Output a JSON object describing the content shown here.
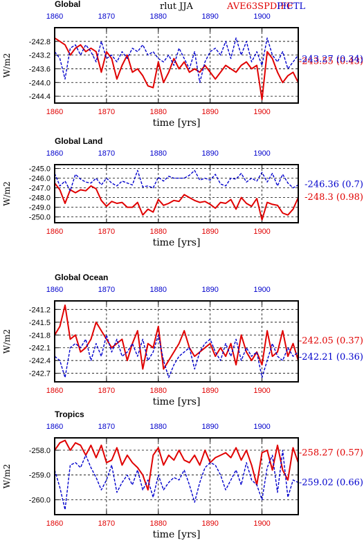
{
  "header": {
    "variable": "rlut JJA",
    "exp_label": "AVE63SPDIFF",
    "ctl_label": "PICTL",
    "exp_color": "#e00000",
    "ctl_color": "#0000cc"
  },
  "chart_data": [
    {
      "type": "line",
      "title": "Global",
      "ylabel": "W/m2",
      "xlabel": "time [yrs]",
      "xlim": [
        1860,
        1907
      ],
      "xticks": [
        "1860",
        "1870",
        "1880",
        "1890",
        "1900"
      ],
      "ylim": [
        -244.6,
        -242.4
      ],
      "yticks": [
        "-242.8",
        "-243.2",
        "-243.6",
        "-244.0",
        "-244.4"
      ],
      "ytick_values": [
        -242.8,
        -243.2,
        -243.6,
        -244.0,
        -244.4
      ],
      "grid": "dashed",
      "x": [
        1860,
        1861,
        1862,
        1863,
        1864,
        1865,
        1866,
        1867,
        1868,
        1869,
        1870,
        1871,
        1872,
        1873,
        1874,
        1875,
        1876,
        1877,
        1878,
        1879,
        1880,
        1881,
        1882,
        1883,
        1884,
        1885,
        1886,
        1887,
        1888,
        1889,
        1890,
        1891,
        1892,
        1893,
        1894,
        1895,
        1896,
        1897,
        1898,
        1899,
        1900,
        1901,
        1902,
        1903,
        1904,
        1905,
        1906,
        1907
      ],
      "series": [
        {
          "name": "AVE63SPDIFF",
          "color": "#e00000",
          "stat_label": "-243.55 (0.43)",
          "values": [
            -242.7,
            -242.8,
            -242.9,
            -243.2,
            -243.0,
            -242.9,
            -243.1,
            -243.0,
            -243.1,
            -243.7,
            -243.1,
            -243.3,
            -243.9,
            -243.5,
            -243.2,
            -243.7,
            -243.6,
            -243.8,
            -244.1,
            -244.15,
            -243.4,
            -244.0,
            -243.7,
            -243.3,
            -243.6,
            -243.4,
            -243.7,
            -243.6,
            -243.7,
            -243.5,
            -243.7,
            -243.9,
            -243.7,
            -243.5,
            -243.6,
            -243.7,
            -243.5,
            -243.4,
            -243.6,
            -243.5,
            -244.5,
            -243.1,
            -243.3,
            -243.7,
            -244.0,
            -243.8,
            -243.7,
            -244.0
          ]
        },
        {
          "name": "PICTL",
          "color": "#0000cc",
          "stat_label": "-243.27 (0.34)",
          "values": [
            -243.1,
            -243.3,
            -243.9,
            -243.0,
            -242.9,
            -243.2,
            -242.9,
            -243.1,
            -243.4,
            -242.8,
            -243.3,
            -243.2,
            -243.4,
            -243.1,
            -243.3,
            -243.0,
            -243.1,
            -242.9,
            -243.2,
            -243.1,
            -243.3,
            -243.4,
            -243.2,
            -243.5,
            -243.0,
            -243.3,
            -243.6,
            -243.1,
            -244.0,
            -243.4,
            -243.1,
            -243.0,
            -243.2,
            -242.8,
            -243.3,
            -242.7,
            -243.2,
            -242.8,
            -243.4,
            -243.1,
            -243.5,
            -242.7,
            -243.2,
            -243.4,
            -243.1,
            -243.6,
            -243.4,
            -243.2
          ]
        }
      ]
    },
    {
      "type": "line",
      "title": "Global Land",
      "ylabel": "W/m2",
      "xlabel": "time [yrs]",
      "xlim": [
        1860,
        1907
      ],
      "xticks": [
        "1860",
        "1870",
        "1880",
        "1890",
        "1900"
      ],
      "ylim": [
        -250.6,
        -244.6
      ],
      "yticks": [
        "-245.0",
        "-246.0",
        "-247.0",
        "-248.0",
        "-249.0",
        "-250.0"
      ],
      "ytick_values": [
        -245.0,
        -246.0,
        -247.0,
        -248.0,
        -249.0,
        -250.0
      ],
      "grid": "dashed",
      "x": [
        1860,
        1861,
        1862,
        1863,
        1864,
        1865,
        1866,
        1867,
        1868,
        1869,
        1870,
        1871,
        1872,
        1873,
        1874,
        1875,
        1876,
        1877,
        1878,
        1879,
        1880,
        1881,
        1882,
        1883,
        1884,
        1885,
        1886,
        1887,
        1888,
        1889,
        1890,
        1891,
        1892,
        1893,
        1894,
        1895,
        1896,
        1897,
        1898,
        1899,
        1900,
        1901,
        1902,
        1903,
        1904,
        1905,
        1906,
        1907
      ],
      "series": [
        {
          "name": "AVE63SPDIFF",
          "color": "#e00000",
          "stat_label": "-248.3 (0.98)",
          "values": [
            -246.5,
            -247.2,
            -248.6,
            -247.2,
            -247.5,
            -247.2,
            -247.3,
            -246.8,
            -247.1,
            -248.3,
            -248.9,
            -248.4,
            -248.6,
            -248.5,
            -249.0,
            -249.0,
            -248.5,
            -249.8,
            -249.2,
            -249.5,
            -248.2,
            -248.8,
            -248.6,
            -248.3,
            -248.4,
            -247.7,
            -248.0,
            -248.3,
            -248.5,
            -248.4,
            -248.7,
            -249.1,
            -248.5,
            -248.6,
            -248.2,
            -249.2,
            -248.0,
            -248.6,
            -248.9,
            -248.1,
            -250.3,
            -248.5,
            -248.7,
            -248.8,
            -249.6,
            -249.8,
            -249.2,
            -248.0
          ]
        },
        {
          "name": "PICTL",
          "color": "#0000cc",
          "stat_label": "-246.36 (0.7)",
          "values": [
            -245.5,
            -246.8,
            -246.3,
            -247.3,
            -245.6,
            -246.1,
            -246.4,
            -246.5,
            -246.0,
            -246.7,
            -246.0,
            -246.5,
            -246.8,
            -246.3,
            -246.5,
            -246.7,
            -245.2,
            -246.9,
            -246.8,
            -247.0,
            -245.9,
            -246.3,
            -245.8,
            -246.0,
            -246.0,
            -246.0,
            -245.7,
            -245.2,
            -246.2,
            -246.0,
            -246.2,
            -245.6,
            -246.6,
            -246.8,
            -246.0,
            -246.1,
            -245.5,
            -246.4,
            -246.0,
            -246.3,
            -245.4,
            -246.4,
            -245.5,
            -246.8,
            -245.6,
            -246.5,
            -247.0,
            -246.7
          ]
        }
      ]
    },
    {
      "type": "line",
      "title": "Global Ocean",
      "ylabel": "W/m2",
      "xlabel": "time [yrs]",
      "xlim": [
        1860,
        1907
      ],
      "xticks": [
        "1860",
        "1870",
        "1880",
        "1890",
        "1900"
      ],
      "ylim": [
        -242.9,
        -241.0
      ],
      "yticks": [
        "-241.2",
        "-241.5",
        "-241.8",
        "-242.1",
        "-242.4",
        "-242.7"
      ],
      "ytick_values": [
        -241.2,
        -241.5,
        -241.8,
        -242.1,
        -242.4,
        -242.7
      ],
      "grid": "dashed",
      "x": [
        1860,
        1861,
        1862,
        1863,
        1864,
        1865,
        1866,
        1867,
        1868,
        1869,
        1870,
        1871,
        1872,
        1873,
        1874,
        1875,
        1876,
        1877,
        1878,
        1879,
        1880,
        1881,
        1882,
        1883,
        1884,
        1885,
        1886,
        1887,
        1888,
        1889,
        1890,
        1891,
        1892,
        1893,
        1894,
        1895,
        1896,
        1897,
        1898,
        1899,
        1900,
        1901,
        1902,
        1903,
        1904,
        1905,
        1906,
        1907
      ],
      "series": [
        {
          "name": "AVE63SPDIFF",
          "color": "#e00000",
          "stat_label": "-242.05 (0.37)",
          "values": [
            -241.8,
            -241.6,
            -241.1,
            -241.9,
            -241.8,
            -242.2,
            -242.1,
            -241.9,
            -241.5,
            -241.7,
            -241.9,
            -242.1,
            -242.0,
            -241.9,
            -242.4,
            -242.0,
            -241.7,
            -242.6,
            -242.0,
            -242.1,
            -241.6,
            -242.6,
            -242.4,
            -242.2,
            -242.0,
            -241.7,
            -242.1,
            -242.3,
            -242.2,
            -242.1,
            -242.0,
            -242.3,
            -242.1,
            -242.3,
            -242.0,
            -242.5,
            -241.8,
            -242.2,
            -242.4,
            -242.2,
            -242.5,
            -241.7,
            -242.3,
            -242.2,
            -241.7,
            -242.3,
            -242.0,
            -242.4
          ]
        },
        {
          "name": "PICTL",
          "color": "#0000cc",
          "stat_label": "-242.21 (0.36)",
          "values": [
            -242.3,
            -242.4,
            -242.8,
            -242.1,
            -242.0,
            -242.1,
            -241.9,
            -242.4,
            -242.0,
            -242.3,
            -241.8,
            -242.2,
            -241.9,
            -242.3,
            -242.2,
            -242.0,
            -242.3,
            -241.9,
            -242.4,
            -242.2,
            -241.8,
            -242.4,
            -242.8,
            -242.5,
            -242.3,
            -242.2,
            -242.1,
            -242.6,
            -242.2,
            -242.0,
            -241.9,
            -242.2,
            -242.4,
            -242.0,
            -242.3,
            -241.9,
            -242.4,
            -242.1,
            -242.3,
            -242.2,
            -242.8,
            -242.4,
            -242.0,
            -242.3,
            -242.4,
            -242.1,
            -242.3,
            -242.2
          ]
        }
      ]
    },
    {
      "type": "line",
      "title": "Tropics",
      "ylabel": "W/m2",
      "xlabel": "time [yrs]",
      "xlim": [
        1860,
        1907
      ],
      "xticks": [
        "1860",
        "1870",
        "1880",
        "1890",
        "1900"
      ],
      "ylim": [
        -260.6,
        -257.5
      ],
      "yticks": [
        "-258.0",
        "-259.0",
        "-260.0"
      ],
      "ytick_values": [
        -258.0,
        -259.0,
        -260.0
      ],
      "grid": "dashed",
      "x": [
        1860,
        1861,
        1862,
        1863,
        1864,
        1865,
        1866,
        1867,
        1868,
        1869,
        1870,
        1871,
        1872,
        1873,
        1874,
        1875,
        1876,
        1877,
        1878,
        1879,
        1880,
        1881,
        1882,
        1883,
        1884,
        1885,
        1886,
        1887,
        1888,
        1889,
        1890,
        1891,
        1892,
        1893,
        1894,
        1895,
        1896,
        1897,
        1898,
        1899,
        1900,
        1901,
        1902,
        1903,
        1904,
        1905,
        1906,
        1907
      ],
      "series": [
        {
          "name": "AVE63SPDIFF",
          "color": "#e00000",
          "stat_label": "-258.27 (0.57)",
          "values": [
            -258.0,
            -257.7,
            -257.6,
            -258.0,
            -257.7,
            -257.8,
            -258.2,
            -257.8,
            -258.3,
            -257.8,
            -258.5,
            -258.4,
            -257.9,
            -258.6,
            -258.2,
            -258.5,
            -258.7,
            -259.0,
            -259.6,
            -258.2,
            -257.9,
            -258.6,
            -258.2,
            -258.4,
            -258.0,
            -258.4,
            -258.5,
            -258.2,
            -258.6,
            -258.0,
            -258.5,
            -258.3,
            -258.2,
            -258.1,
            -258.3,
            -257.9,
            -258.4,
            -258.0,
            -258.6,
            -259.4,
            -258.1,
            -258.0,
            -258.8,
            -257.8,
            -258.8,
            -259.2,
            -257.9,
            -258.5
          ]
        },
        {
          "name": "PICTL",
          "color": "#0000cc",
          "stat_label": "-259.02 (0.66)",
          "values": [
            -258.8,
            -259.5,
            -260.4,
            -258.6,
            -258.5,
            -258.7,
            -258.2,
            -258.7,
            -259.1,
            -259.6,
            -259.2,
            -258.6,
            -259.7,
            -259.3,
            -259.0,
            -259.4,
            -258.8,
            -259.6,
            -259.2,
            -259.9,
            -259.0,
            -259.6,
            -259.3,
            -259.1,
            -259.2,
            -258.8,
            -259.4,
            -260.1,
            -259.3,
            -258.7,
            -258.5,
            -258.6,
            -259.0,
            -259.6,
            -259.2,
            -258.8,
            -259.4,
            -258.5,
            -259.2,
            -259.4,
            -260.0,
            -258.7,
            -258.2,
            -259.7,
            -258.0,
            -259.9,
            -259.2,
            -259.3
          ]
        }
      ]
    }
  ]
}
